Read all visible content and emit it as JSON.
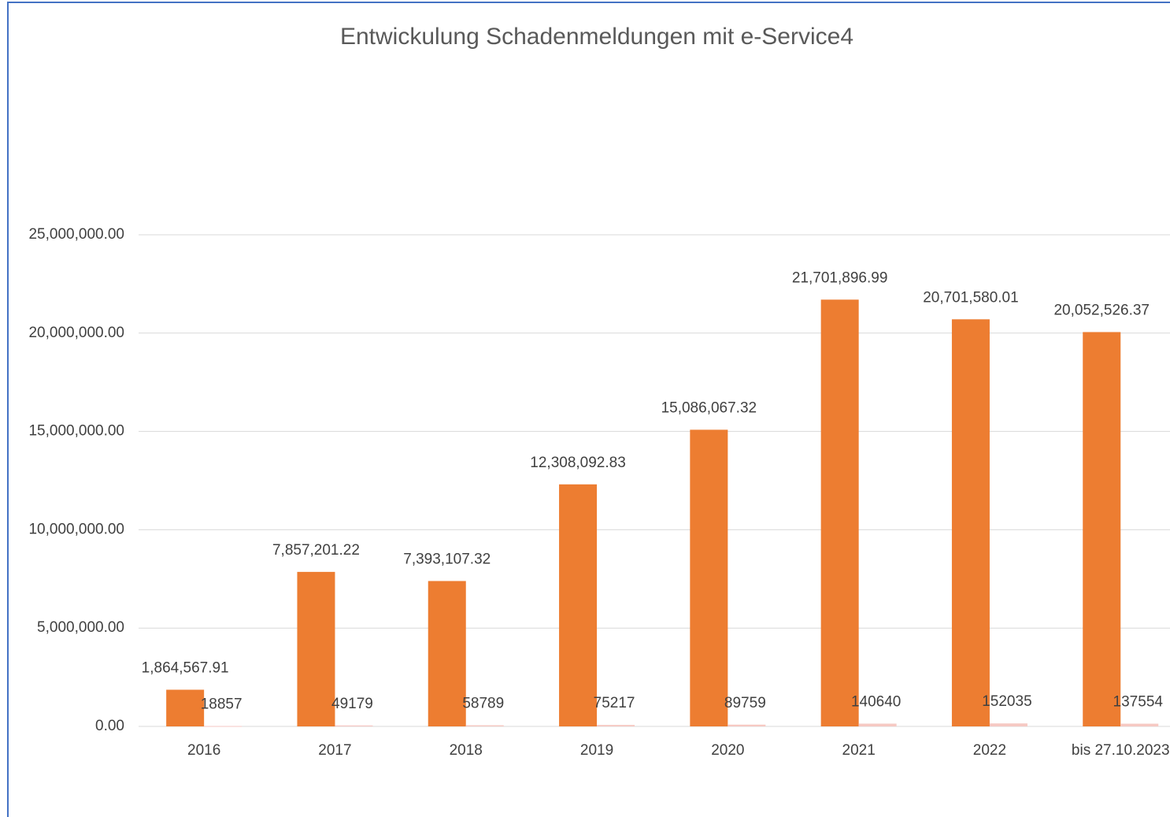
{
  "chart_data": {
    "type": "bar",
    "title": "Entwickulung Schadenmeldungen mit e-Service4",
    "categories": [
      "2016",
      "2017",
      "2018",
      "2019",
      "2020",
      "2021",
      "2022",
      "bis 27.10.2023"
    ],
    "series": [
      {
        "color": "#ed7d31",
        "values": [
          1864567.91,
          7857201.22,
          7393107.32,
          12308092.83,
          15086067.32,
          21701896.99,
          20701580.01,
          20052526.37
        ],
        "value_labels": [
          "1,864,567.91",
          "7,857,201.22",
          "7,393,107.32",
          "12,308,092.83",
          "15,086,067.32",
          "21,701,896.99",
          "20,701,580.01",
          "20,052,526.37"
        ]
      },
      {
        "color": "#f6c9c3",
        "values": [
          18857,
          49179,
          58789,
          75217,
          89759,
          140640,
          152035,
          137554
        ]
      }
    ],
    "ylim": [
      0,
      25000000
    ],
    "yticks": [
      {
        "value": 0,
        "label": "0.00"
      },
      {
        "value": 5000000,
        "label": "5,000,000.00"
      },
      {
        "value": 10000000,
        "label": "10,000,000.00"
      },
      {
        "value": 15000000,
        "label": "15,000,000.00"
      },
      {
        "value": 20000000,
        "label": "20,000,000.00"
      },
      {
        "value": 25000000,
        "label": "25,000,000.00"
      }
    ],
    "grid": true
  }
}
